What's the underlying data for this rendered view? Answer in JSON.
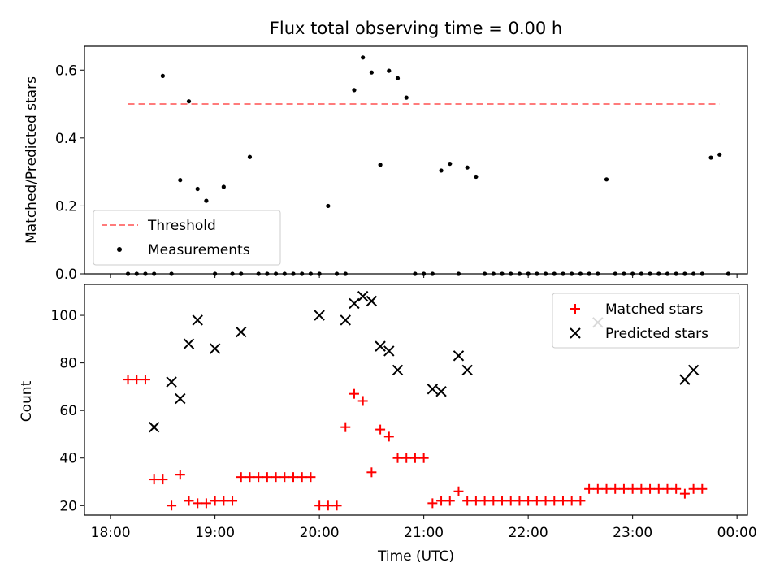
{
  "chart_data": [
    {
      "type": "scatter",
      "title": "Flux total observing time = 0.00 h",
      "xlabel": "",
      "ylabel": "Matched/Predicted stars",
      "ylim": [
        0,
        0.67
      ],
      "yticks": [
        "0.0",
        "0.2",
        "0.4",
        "0.6"
      ],
      "legend": {
        "placement": "bottom-left",
        "entries": [
          "Threshold",
          "Measurements"
        ]
      },
      "threshold": {
        "name": "Threshold",
        "value": 0.5,
        "xrange": [
          "18:10",
          "23:50"
        ],
        "color": "#ff7b7b"
      },
      "series": [
        {
          "name": "Measurements",
          "color": "#000000",
          "points": [
            [
              "18:10",
              0
            ],
            [
              "18:15",
              0
            ],
            [
              "18:20",
              0
            ],
            [
              "18:25",
              0
            ],
            [
              "18:30",
              0.583
            ],
            [
              "18:35",
              0
            ],
            [
              "18:40",
              0.276
            ],
            [
              "18:45",
              0.508
            ],
            [
              "18:50",
              0.25
            ],
            [
              "18:55",
              0.215
            ],
            [
              "19:00",
              0
            ],
            [
              "19:05",
              0.256
            ],
            [
              "19:10",
              0
            ],
            [
              "19:15",
              0
            ],
            [
              "19:20",
              0.344
            ],
            [
              "19:25",
              0
            ],
            [
              "19:30",
              0
            ],
            [
              "19:35",
              0
            ],
            [
              "19:40",
              0
            ],
            [
              "19:45",
              0
            ],
            [
              "19:50",
              0
            ],
            [
              "19:55",
              0
            ],
            [
              "20:00",
              0
            ],
            [
              "20:05",
              0.2
            ],
            [
              "20:10",
              0
            ],
            [
              "20:15",
              0
            ],
            [
              "20:20",
              0.541
            ],
            [
              "20:25",
              0.637
            ],
            [
              "20:30",
              0.593
            ],
            [
              "20:35",
              0.321
            ],
            [
              "20:40",
              0.598
            ],
            [
              "20:45",
              0.576
            ],
            [
              "20:50",
              0.519
            ],
            [
              "20:55",
              0
            ],
            [
              "21:00",
              0
            ],
            [
              "21:05",
              0
            ],
            [
              "21:10",
              0.304
            ],
            [
              "21:15",
              0.324
            ],
            [
              "21:20",
              0
            ],
            [
              "21:25",
              0.313
            ],
            [
              "21:30",
              0.286
            ],
            [
              "21:35",
              0
            ],
            [
              "21:40",
              0
            ],
            [
              "21:45",
              0
            ],
            [
              "21:50",
              0
            ],
            [
              "21:55",
              0
            ],
            [
              "22:00",
              0
            ],
            [
              "22:05",
              0
            ],
            [
              "22:10",
              0
            ],
            [
              "22:15",
              0
            ],
            [
              "22:20",
              0
            ],
            [
              "22:25",
              0
            ],
            [
              "22:30",
              0
            ],
            [
              "22:35",
              0
            ],
            [
              "22:40",
              0
            ],
            [
              "22:45",
              0.278
            ],
            [
              "22:50",
              0
            ],
            [
              "22:55",
              0
            ],
            [
              "23:00",
              0
            ],
            [
              "23:05",
              0
            ],
            [
              "23:10",
              0
            ],
            [
              "23:15",
              0
            ],
            [
              "23:20",
              0
            ],
            [
              "23:25",
              0
            ],
            [
              "23:30",
              0
            ],
            [
              "23:35",
              0
            ],
            [
              "23:40",
              0
            ],
            [
              "23:45",
              0.342
            ],
            [
              "23:50",
              0.351
            ],
            [
              "23:55",
              0
            ]
          ]
        }
      ]
    },
    {
      "type": "scatter",
      "title": "",
      "xlabel": "Time (UTC)",
      "ylabel": "Count",
      "ylim": [
        16,
        113
      ],
      "xlim": [
        "17:45",
        "00:06"
      ],
      "xticks": [
        "18:00",
        "19:00",
        "20:00",
        "21:00",
        "22:00",
        "23:00",
        "00:00"
      ],
      "yticks": [
        "20",
        "40",
        "60",
        "80",
        "100"
      ],
      "legend": {
        "placement": "top-right",
        "entries": [
          "Matched stars",
          "Predicted stars"
        ]
      },
      "series": [
        {
          "name": "Matched stars",
          "marker": "+",
          "color": "#ff0000",
          "points": [
            [
              "18:10",
              73
            ],
            [
              "18:15",
              73
            ],
            [
              "18:20",
              73
            ],
            [
              "18:25",
              31
            ],
            [
              "18:30",
              31
            ],
            [
              "18:35",
              20
            ],
            [
              "18:40",
              33
            ],
            [
              "18:45",
              22
            ],
            [
              "18:50",
              21
            ],
            [
              "18:55",
              21
            ],
            [
              "19:00",
              22
            ],
            [
              "19:05",
              22
            ],
            [
              "19:10",
              22
            ],
            [
              "19:15",
              32
            ],
            [
              "19:20",
              32
            ],
            [
              "19:25",
              32
            ],
            [
              "19:30",
              32
            ],
            [
              "19:35",
              32
            ],
            [
              "19:40",
              32
            ],
            [
              "19:45",
              32
            ],
            [
              "19:50",
              32
            ],
            [
              "19:55",
              32
            ],
            [
              "20:00",
              20
            ],
            [
              "20:05",
              20
            ],
            [
              "20:10",
              20
            ],
            [
              "20:15",
              53
            ],
            [
              "20:20",
              67
            ],
            [
              "20:25",
              64
            ],
            [
              "20:30",
              34
            ],
            [
              "20:35",
              52
            ],
            [
              "20:40",
              49
            ],
            [
              "20:45",
              40
            ],
            [
              "20:50",
              40
            ],
            [
              "20:55",
              40
            ],
            [
              "21:00",
              40
            ],
            [
              "21:05",
              21
            ],
            [
              "21:10",
              22
            ],
            [
              "21:15",
              22
            ],
            [
              "21:20",
              26
            ],
            [
              "21:25",
              22
            ],
            [
              "21:30",
              22
            ],
            [
              "21:35",
              22
            ],
            [
              "21:40",
              22
            ],
            [
              "21:45",
              22
            ],
            [
              "21:50",
              22
            ],
            [
              "21:55",
              22
            ],
            [
              "22:00",
              22
            ],
            [
              "22:05",
              22
            ],
            [
              "22:10",
              22
            ],
            [
              "22:15",
              22
            ],
            [
              "22:20",
              22
            ],
            [
              "22:25",
              22
            ],
            [
              "22:30",
              22
            ],
            [
              "22:35",
              27
            ],
            [
              "22:40",
              27
            ],
            [
              "22:45",
              27
            ],
            [
              "22:50",
              27
            ],
            [
              "22:55",
              27
            ],
            [
              "23:00",
              27
            ],
            [
              "23:05",
              27
            ],
            [
              "23:10",
              27
            ],
            [
              "23:15",
              27
            ],
            [
              "23:20",
              27
            ],
            [
              "23:25",
              27
            ],
            [
              "23:30",
              25
            ],
            [
              "23:35",
              27
            ],
            [
              "23:40",
              27
            ]
          ]
        },
        {
          "name": "Predicted stars",
          "marker": "x",
          "color": "#000000",
          "points": [
            [
              "18:25",
              53
            ],
            [
              "18:35",
              72
            ],
            [
              "18:40",
              65
            ],
            [
              "18:45",
              88
            ],
            [
              "18:50",
              98
            ],
            [
              "19:00",
              86
            ],
            [
              "19:15",
              93
            ],
            [
              "20:00",
              100
            ],
            [
              "20:15",
              98
            ],
            [
              "20:20",
              105
            ],
            [
              "20:25",
              108
            ],
            [
              "20:30",
              106
            ],
            [
              "20:35",
              87
            ],
            [
              "20:40",
              85
            ],
            [
              "20:45",
              77
            ],
            [
              "21:05",
              69
            ],
            [
              "21:10",
              68
            ],
            [
              "21:20",
              83
            ],
            [
              "21:25",
              77
            ],
            [
              "22:40",
              97
            ],
            [
              "23:30",
              73
            ],
            [
              "23:35",
              77
            ]
          ]
        }
      ]
    }
  ]
}
